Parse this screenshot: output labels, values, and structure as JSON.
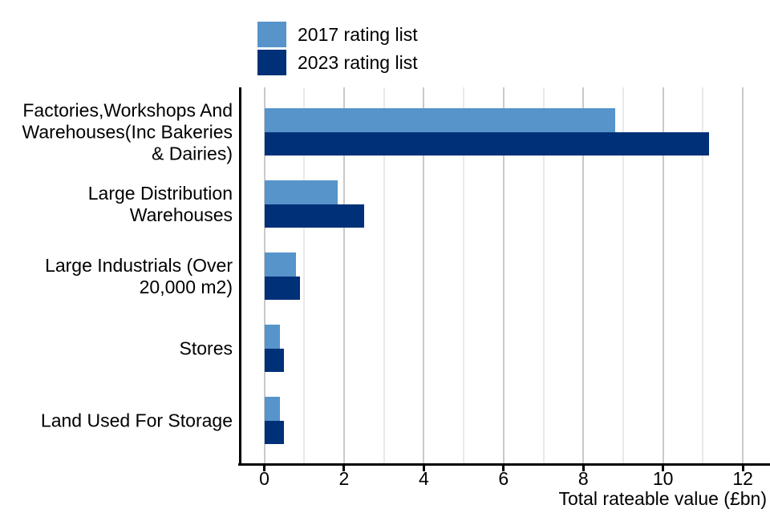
{
  "legend": {
    "items": [
      {
        "label": "2017 rating list",
        "color": "#5694ca"
      },
      {
        "label": "2023 rating list",
        "color": "#003078"
      }
    ]
  },
  "chart_data": {
    "type": "bar",
    "orientation": "horizontal",
    "title": "",
    "xlabel": "Total rateable value (£bn)",
    "ylabel": "",
    "xlim": [
      -0.6,
      12.7
    ],
    "x_ticks": [
      0,
      2,
      4,
      6,
      8,
      10,
      12
    ],
    "x_minor_gridlines": [
      1,
      3,
      5,
      7,
      9,
      11
    ],
    "grid": true,
    "legend_position": "top",
    "categories": [
      [
        "Factories,Workshops And",
        "Warehouses(Inc Bakeries",
        "& Dairies)"
      ],
      [
        "Large Distribution",
        "Warehouses"
      ],
      [
        "Large Industrials (Over",
        "20,000 m2)"
      ],
      [
        "Stores"
      ],
      [
        "Land Used For Storage"
      ]
    ],
    "series": [
      {
        "name": "2017 rating list",
        "color": "#5694ca",
        "values": [
          8.8,
          1.85,
          0.8,
          0.4,
          0.4
        ]
      },
      {
        "name": "2023 rating list",
        "color": "#003078",
        "values": [
          11.15,
          2.5,
          0.9,
          0.5,
          0.5
        ]
      }
    ]
  },
  "colors": {
    "axis": "#000000",
    "grid_major": "#c9c9c9",
    "grid_minor": "#e9e9e9",
    "background": "#ffffff",
    "text": "#000000"
  }
}
